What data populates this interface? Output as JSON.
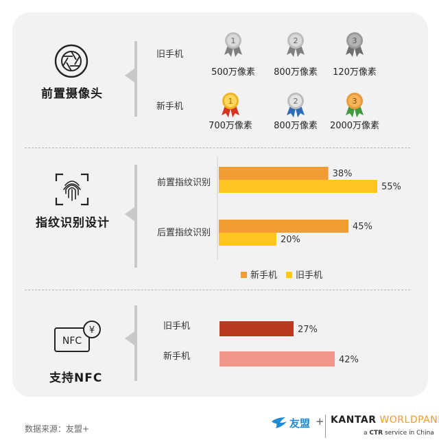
{
  "sections": {
    "camera": {
      "title": "前置摄像头",
      "old_label": "旧手机",
      "new_label": "新手机",
      "old_medals": [
        {
          "rank": "1",
          "label": "500万像素"
        },
        {
          "rank": "2",
          "label": "800万像素"
        },
        {
          "rank": "3",
          "label": "120万像素"
        }
      ],
      "new_medals": [
        {
          "rank": "1",
          "label": "700万像素"
        },
        {
          "rank": "2",
          "label": "800万像素"
        },
        {
          "rank": "3",
          "label": "2000万像素"
        }
      ]
    },
    "fingerprint": {
      "title": "指纹识别设计"
    },
    "nfc": {
      "title": "支持NFC",
      "icon_text": "NFC",
      "yen": "¥"
    }
  },
  "chart_data": [
    {
      "type": "bar",
      "orientation": "horizontal",
      "categories": [
        "前置指纹识别",
        "后置指纹识别"
      ],
      "series": [
        {
          "name": "新手机",
          "values": [
            38,
            45
          ],
          "color": "#f39c34"
        },
        {
          "name": "旧手机",
          "values": [
            55,
            20
          ],
          "color": "#ffc521"
        }
      ],
      "value_labels": [
        [
          "38%",
          "45%"
        ],
        [
          "55%",
          "20%"
        ]
      ],
      "xlim": [
        0,
        100
      ],
      "legend": "bottom-center"
    },
    {
      "type": "bar",
      "orientation": "horizontal",
      "categories": [
        "旧手机",
        "新手机"
      ],
      "values": [
        27,
        42
      ],
      "value_labels": [
        "27%",
        "42%"
      ],
      "colors": [
        "#b83a22",
        "#f1978a"
      ],
      "xlim": [
        0,
        100
      ]
    }
  ],
  "footer": {
    "source": "数据来源：友盟+",
    "umeng": "友盟",
    "plus": "+",
    "kantar": "KANTAR",
    "worldpanel": "WORLDPANEL",
    "tagline_pre": "a ",
    "tagline_ctr": "CTR",
    "tagline_post": " service in China"
  },
  "colors": {
    "gold": "#f0b323",
    "silver": "#9a9a9a",
    "bronze": "#e89a3c",
    "ribbon_red": "#d6331f",
    "ribbon_blue": "#2d6bb5",
    "ribbon_green": "#3e9a3c",
    "grey_ribbon": "#7f7f7f"
  }
}
